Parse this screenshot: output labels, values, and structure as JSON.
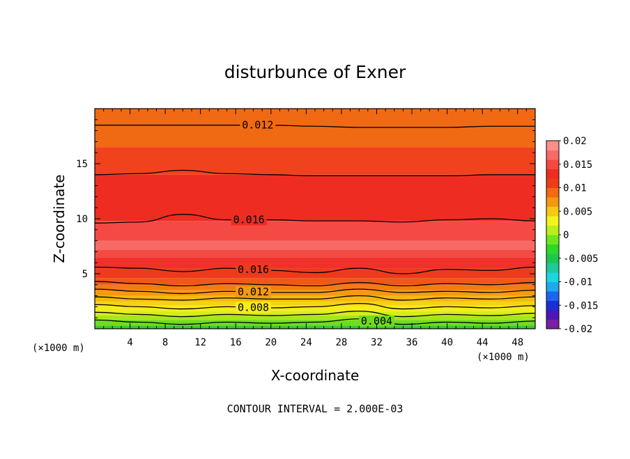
{
  "chart_data": {
    "type": "contour",
    "title": "disturbunce of Exner",
    "xlabel": "X-coordinate",
    "ylabel": "Z-coordinate",
    "x_unit": "(×1000 m)",
    "y_unit": "(×1000 m)",
    "xlim": [
      0,
      50
    ],
    "ylim": [
      0,
      20
    ],
    "x_ticks": [
      4,
      8,
      12,
      16,
      20,
      24,
      28,
      32,
      36,
      40,
      44,
      48
    ],
    "y_ticks": [
      5,
      10,
      15
    ],
    "contour_interval_text": "CONTOUR INTERVAL = 2.000E-03",
    "colorbar": {
      "min": -0.02,
      "max": 0.02,
      "labels": [
        "0.02",
        "0.015",
        "0.01",
        "0.005",
        "0",
        "-0.005",
        "-0.01",
        "-0.015",
        "-0.02"
      ],
      "colors": [
        "#7a1fa6",
        "#4b17b6",
        "#1b2fd6",
        "#1a66f0",
        "#1ea9ee",
        "#18d8de",
        "#1ec99a",
        "#1ec850",
        "#2ed82a",
        "#6ee61c",
        "#b9ef1c",
        "#f1f51c",
        "#f7c812",
        "#f59810",
        "#f36a12",
        "#ee3c18",
        "#ef2c22",
        "#f24a40",
        "#f86a66",
        "#fd8e8a"
      ]
    },
    "field_bands": [
      {
        "z_range": [
          0,
          0.3
        ],
        "value": 0.0,
        "color": "#3acb2c"
      },
      {
        "z_range": [
          0.3,
          0.8
        ],
        "value": 0.002,
        "color": "#70dc1e"
      },
      {
        "z_range": [
          0.8,
          1.2
        ],
        "value": 0.004,
        "color": "#a8e61c"
      },
      {
        "z_range": [
          1.2,
          1.6
        ],
        "value": 0.005,
        "color": "#d8ec1c"
      },
      {
        "z_range": [
          1.6,
          2.1
        ],
        "value": 0.006,
        "color": "#f5ec18"
      },
      {
        "z_range": [
          2.1,
          2.5
        ],
        "value": 0.007,
        "color": "#f7d214"
      },
      {
        "z_range": [
          2.5,
          3.0
        ],
        "value": 0.008,
        "color": "#f6b810"
      },
      {
        "z_range": [
          3.0,
          3.5
        ],
        "value": 0.01,
        "color": "#f49a10"
      },
      {
        "z_range": [
          3.5,
          4.0
        ],
        "value": 0.012,
        "color": "#f37c12"
      },
      {
        "z_range": [
          4.0,
          4.6
        ],
        "value": 0.014,
        "color": "#f05818"
      },
      {
        "z_range": [
          4.6,
          5.5
        ],
        "value": 0.015,
        "color": "#ee3a1c"
      },
      {
        "z_range": [
          5.5,
          6.5
        ],
        "value": 0.016,
        "color": "#f0302a"
      },
      {
        "z_range": [
          6.5,
          7.2
        ],
        "value": 0.018,
        "color": "#f54a44"
      },
      {
        "z_range": [
          7.2,
          8.0
        ],
        "value": 0.019,
        "color": "#fa6a64"
      },
      {
        "z_range": [
          8.0,
          9.8
        ],
        "value": 0.018,
        "color": "#f54a44"
      },
      {
        "z_range": [
          9.8,
          14.0
        ],
        "value": 0.016,
        "color": "#ef2c22"
      },
      {
        "z_range": [
          14.0,
          16.5
        ],
        "value": 0.014,
        "color": "#f0421c"
      },
      {
        "z_range": [
          16.5,
          20.0
        ],
        "value": 0.012,
        "color": "#f06a14"
      }
    ],
    "contours": [
      {
        "level": "0.012",
        "z": [
          18.5,
          18.5,
          18.5,
          18.5,
          18.5,
          18.4,
          18.3,
          18.3,
          18.3,
          18.4,
          18.4
        ],
        "label_x": 18.5
      },
      {
        "level": "",
        "z": [
          14.0,
          14.1,
          14.4,
          14.1,
          14.0,
          13.9,
          13.9,
          13.9,
          13.9,
          14.0,
          14.0
        ],
        "label_x": null
      },
      {
        "level": "0.016",
        "z": [
          9.6,
          9.7,
          10.4,
          9.9,
          9.9,
          9.8,
          9.8,
          9.7,
          9.9,
          10.0,
          9.8
        ],
        "label_x": 17.5
      },
      {
        "level": "0.016",
        "z": [
          5.6,
          5.5,
          5.2,
          5.5,
          5.3,
          5.1,
          5.5,
          5.0,
          5.4,
          5.3,
          5.6
        ],
        "label_x": 18.0
      },
      {
        "level": "",
        "z": [
          4.3,
          4.1,
          3.9,
          4.1,
          4.0,
          3.9,
          4.2,
          3.9,
          4.1,
          4.0,
          4.2
        ],
        "label_x": null
      },
      {
        "level": "0.012",
        "z": [
          3.6,
          3.4,
          3.2,
          3.4,
          3.3,
          3.3,
          3.6,
          3.3,
          3.4,
          3.3,
          3.5
        ],
        "label_x": 18.0
      },
      {
        "level": "",
        "z": [
          2.9,
          2.7,
          2.6,
          2.8,
          2.7,
          2.7,
          3.0,
          2.6,
          2.8,
          2.7,
          2.9
        ],
        "label_x": null
      },
      {
        "level": "0.008",
        "z": [
          2.2,
          2.0,
          1.8,
          2.0,
          1.9,
          2.0,
          2.3,
          1.8,
          2.0,
          1.9,
          2.1
        ],
        "label_x": 18.0
      },
      {
        "level": "",
        "z": [
          1.5,
          1.3,
          1.1,
          1.3,
          1.2,
          1.3,
          1.6,
          1.1,
          1.3,
          1.2,
          1.4
        ],
        "label_x": null
      },
      {
        "level": "0.004",
        "z": [
          0.8,
          0.6,
          0.4,
          0.6,
          0.5,
          0.6,
          0.9,
          0.4,
          0.6,
          0.5,
          0.7
        ],
        "label_x": 32.0
      }
    ]
  }
}
